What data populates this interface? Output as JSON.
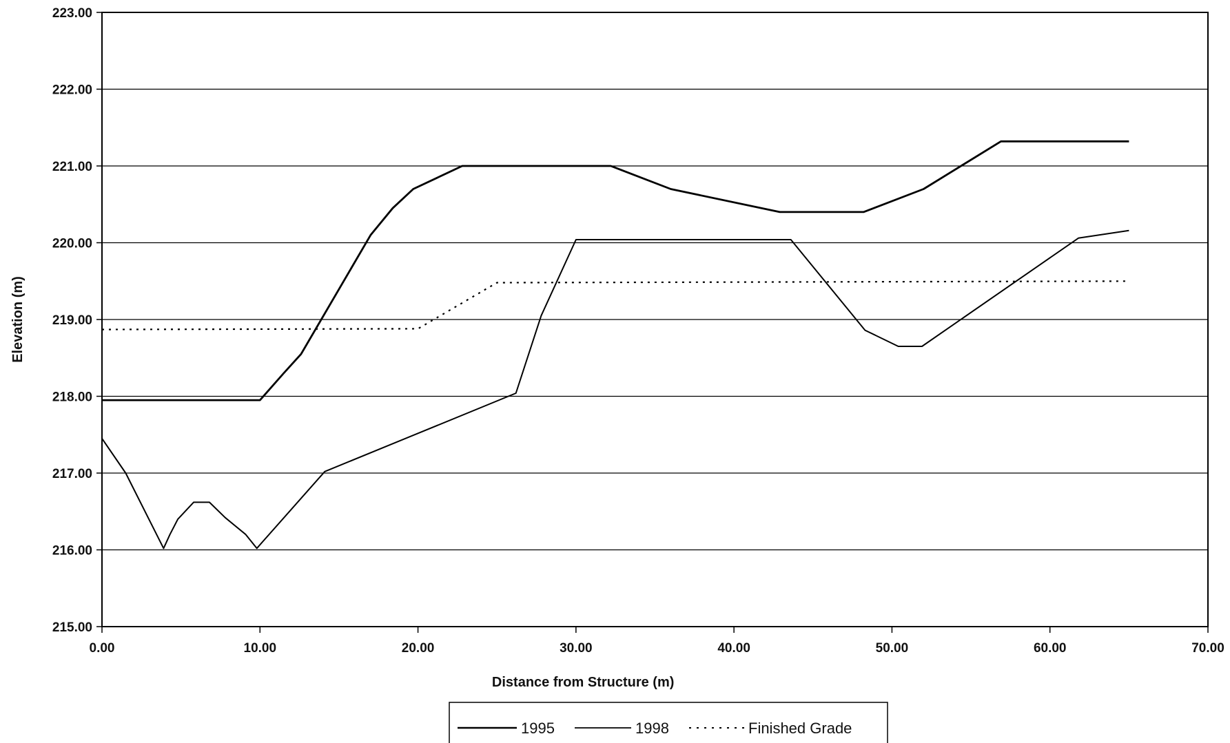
{
  "chart_data": {
    "type": "line",
    "title": "",
    "xlabel": "Distance from Structure (m)",
    "ylabel": "Elevation (m)",
    "xlim": [
      0,
      70
    ],
    "ylim": [
      215,
      223
    ],
    "x_ticks": [
      0,
      10,
      20,
      30,
      40,
      50,
      60,
      70
    ],
    "y_ticks": [
      215,
      216,
      217,
      218,
      219,
      220,
      221,
      222,
      223
    ],
    "x_tick_labels": [
      "0.00",
      "10.00",
      "20.00",
      "30.00",
      "40.00",
      "50.00",
      "60.00",
      "70.00"
    ],
    "y_tick_labels": [
      "215.00",
      "216.00",
      "217.00",
      "218.00",
      "219.00",
      "220.00",
      "221.00",
      "222.00",
      "223.00"
    ],
    "grid": "horizontal",
    "legend_position": "bottom-center",
    "series": [
      {
        "name": "1995",
        "style": "solid",
        "color": "#000000",
        "x": [
          0,
          10,
          11.5,
          12.6,
          17,
          18.4,
          19.7,
          22.8,
          32.2,
          36,
          42.9,
          48.2,
          52,
          56.9,
          65
        ],
        "y": [
          217.95,
          217.95,
          218.3,
          218.55,
          220.1,
          220.45,
          220.7,
          221.0,
          221.0,
          220.7,
          220.4,
          220.4,
          220.7,
          221.32,
          221.32
        ]
      },
      {
        "name": "1998",
        "style": "solid",
        "color": "#000000",
        "x": [
          0,
          1.5,
          3.9,
          4.3,
          4.8,
          5.8,
          6.8,
          7.8,
          9.1,
          9.8,
          14.1,
          26.2,
          27.8,
          30,
          43.6,
          48.3,
          50.4,
          51.9,
          61.8,
          65
        ],
        "y": [
          217.45,
          217.0,
          216.02,
          216.2,
          216.4,
          216.62,
          216.62,
          216.42,
          216.2,
          216.02,
          217.02,
          218.04,
          219.05,
          220.04,
          220.04,
          218.86,
          218.65,
          218.65,
          220.06,
          220.16
        ]
      },
      {
        "name": "Finished Grade",
        "style": "dotted",
        "color": "#000000",
        "x": [
          0,
          20,
          25,
          65
        ],
        "y": [
          218.87,
          218.88,
          219.48,
          219.5
        ]
      }
    ]
  }
}
